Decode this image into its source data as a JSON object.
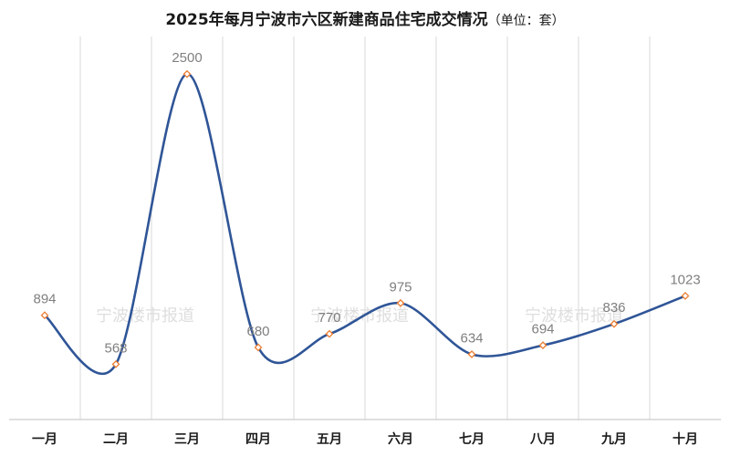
{
  "watermark": "宁波楼市报道",
  "colors": {
    "line": "#2f5597",
    "marker_fill": "#ffffff",
    "marker_stroke": "#ed7d31"
  },
  "chart_data": {
    "type": "line",
    "title": "2025年每月宁波市六区新建商品住宅成交情况",
    "title_unit": "（单位：套）",
    "xlabel": "",
    "ylabel": "",
    "categories": [
      "一月",
      "二月",
      "三月",
      "四月",
      "五月",
      "六月",
      "七月",
      "八月",
      "九月",
      "十月"
    ],
    "series": [
      {
        "values": [
          894,
          568,
          2500,
          680,
          770,
          975,
          634,
          694,
          836,
          1023
        ]
      }
    ],
    "smooth": true,
    "data_labels": true,
    "grid": {
      "vertical": true,
      "horizontal": false
    },
    "legend": "none",
    "ylim": [
      200,
      2750
    ]
  }
}
